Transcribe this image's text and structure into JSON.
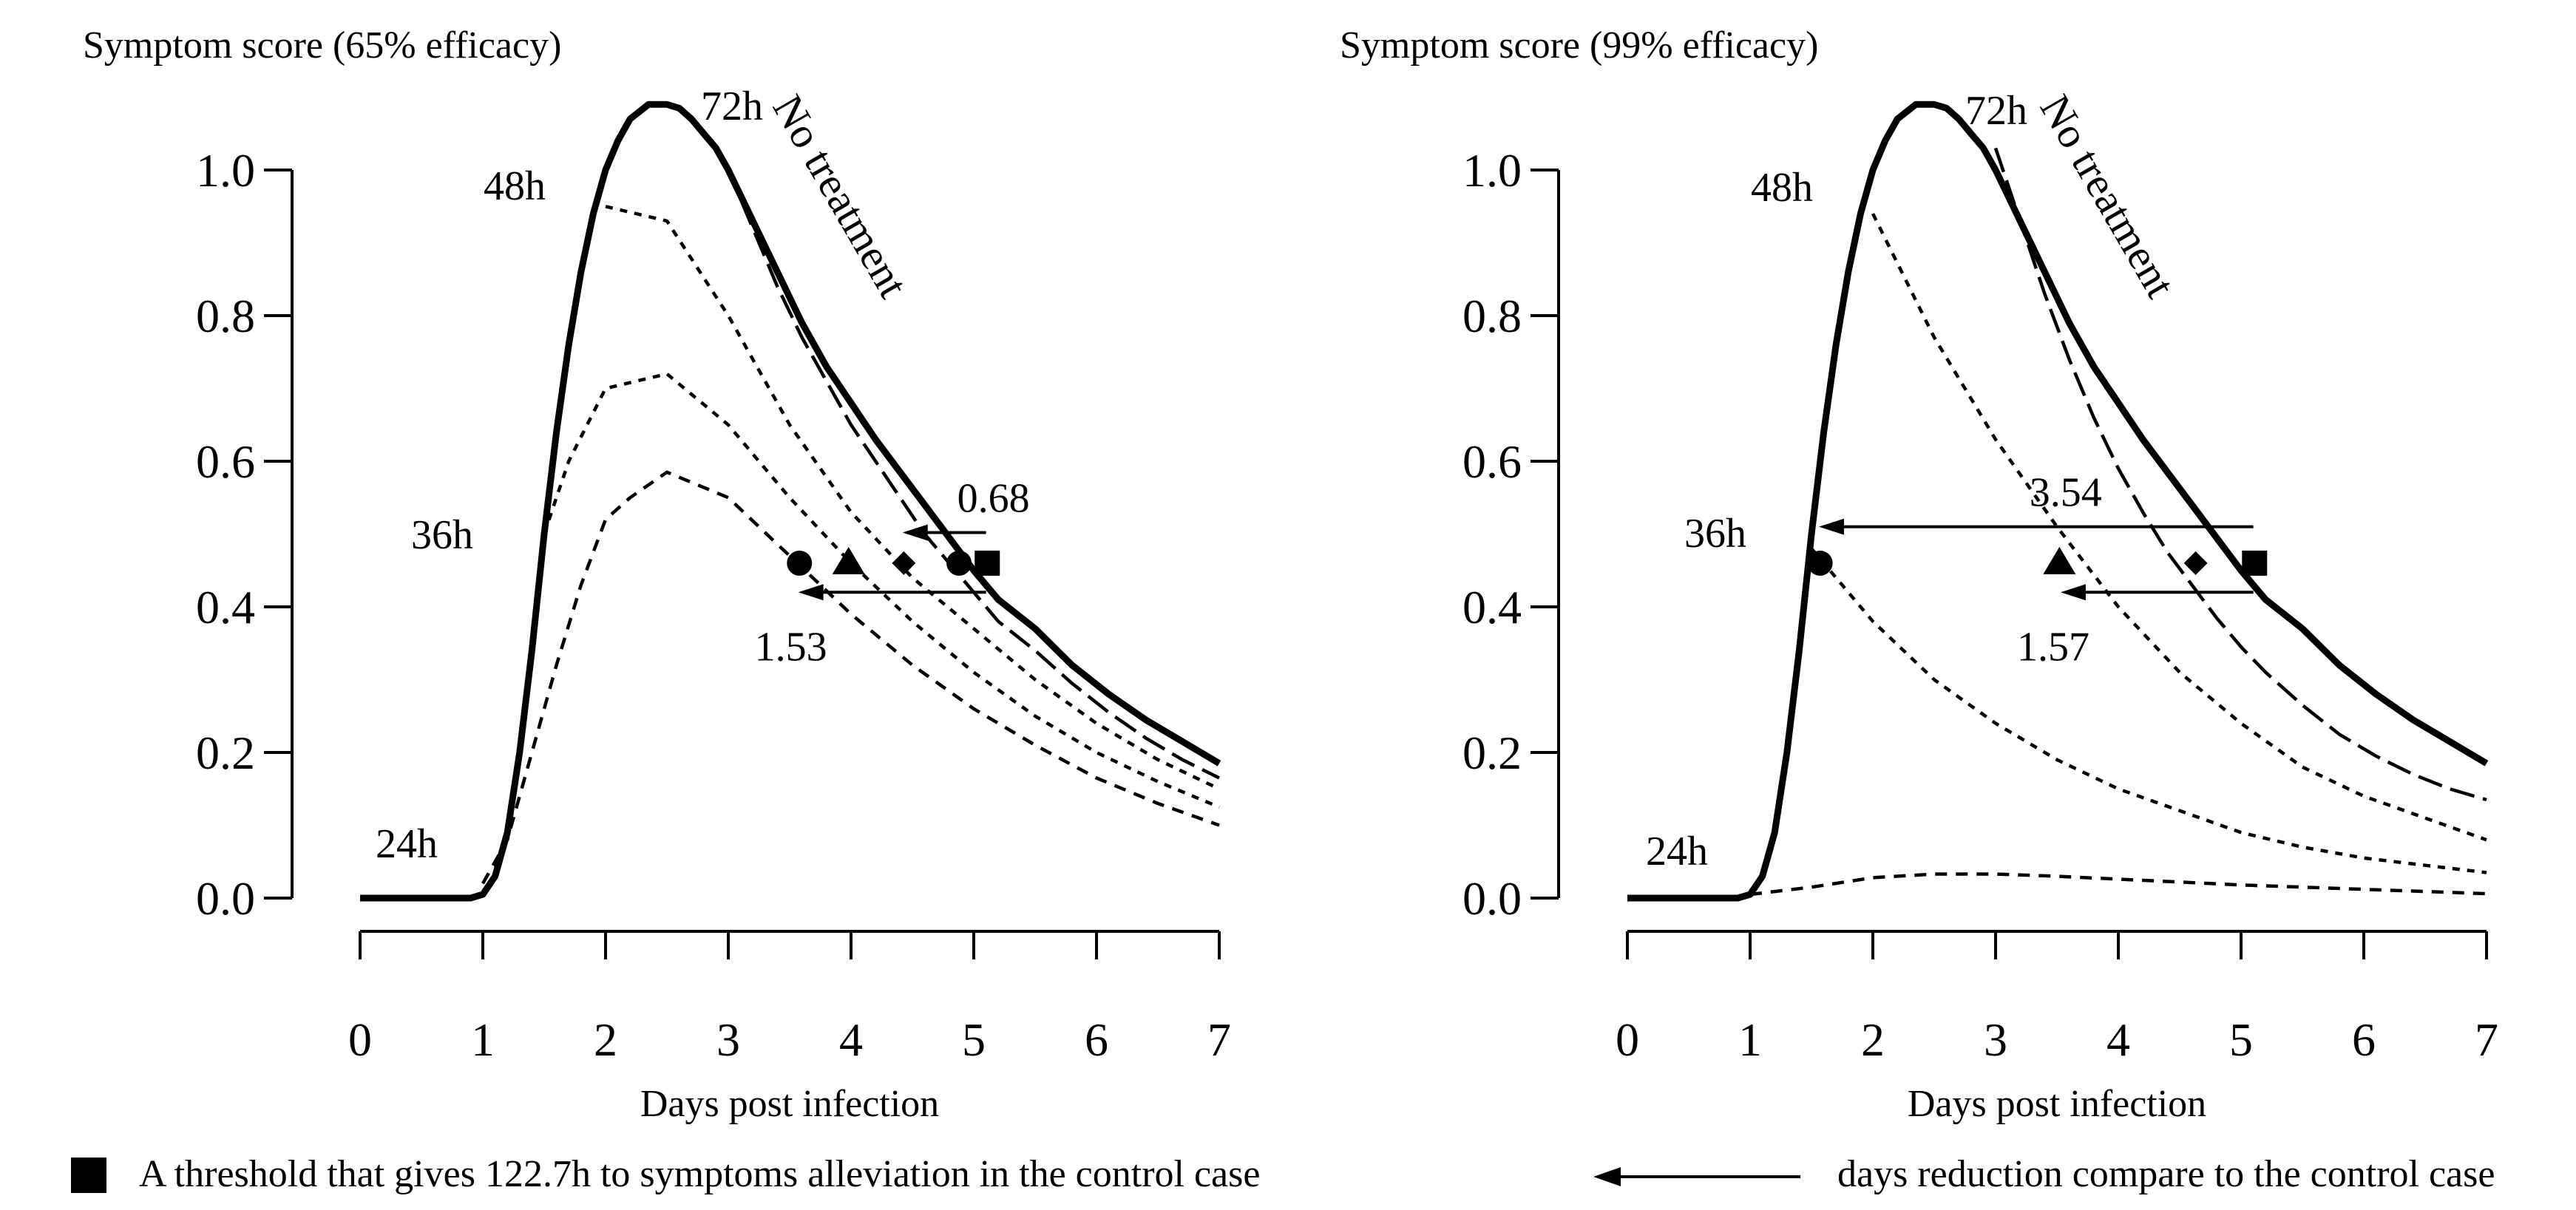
{
  "chart_data": [
    {
      "type": "line",
      "title": "Symptom score (65% efficacy)",
      "xlabel": "Days post infection",
      "ylabel": "",
      "xlim": [
        0,
        7
      ],
      "ylim": [
        0,
        1.0
      ],
      "xticks": [
        "0",
        "1",
        "2",
        "3",
        "4",
        "5",
        "6",
        "7"
      ],
      "yticks": [
        "0.0",
        "0.2",
        "0.4",
        "0.6",
        "0.8",
        "1.0"
      ],
      "curve_label": "No treatment",
      "start_labels": [
        "24h",
        "36h",
        "48h",
        "72h"
      ],
      "series": [
        {
          "name": "No treatment",
          "style": "solid",
          "x": [
            0,
            0.9,
            1.0,
            1.1,
            1.2,
            1.3,
            1.4,
            1.5,
            1.6,
            1.7,
            1.8,
            1.9,
            2.0,
            2.1,
            2.2,
            2.35,
            2.5,
            2.6,
            2.7,
            2.8,
            2.9,
            3.0,
            3.2,
            3.4,
            3.6,
            3.8,
            4.0,
            4.2,
            4.4,
            4.6,
            4.8,
            5.0,
            5.2,
            5.5,
            5.8,
            6.1,
            6.4,
            6.7,
            7.0
          ],
          "y": [
            0,
            0,
            0.005,
            0.03,
            0.09,
            0.2,
            0.34,
            0.5,
            0.64,
            0.76,
            0.86,
            0.94,
            1.0,
            1.04,
            1.07,
            1.09,
            1.09,
            1.085,
            1.07,
            1.05,
            1.03,
            1.0,
            0.93,
            0.86,
            0.79,
            0.73,
            0.68,
            0.63,
            0.585,
            0.54,
            0.495,
            0.45,
            0.41,
            0.37,
            0.32,
            0.28,
            0.245,
            0.215,
            0.185
          ]
        },
        {
          "name": "Treatment started at 72h",
          "style": "dashed",
          "x": [
            3.0,
            3.2,
            3.4,
            3.6,
            3.8,
            4.0,
            4.2,
            4.4,
            4.6,
            4.8,
            5.0,
            5.2,
            5.5,
            5.8,
            6.1,
            6.4,
            6.7,
            7.0
          ],
          "y": [
            1.0,
            0.92,
            0.84,
            0.77,
            0.71,
            0.65,
            0.6,
            0.55,
            0.5,
            0.46,
            0.42,
            0.38,
            0.34,
            0.295,
            0.255,
            0.22,
            0.19,
            0.165
          ]
        },
        {
          "name": "Treatment started at 48h",
          "style": "dotted",
          "x": [
            2.0,
            2.5,
            3.0,
            3.5,
            4.0,
            4.5,
            5.0,
            5.5,
            6.0,
            6.5,
            7.0
          ],
          "y": [
            0.95,
            0.93,
            0.8,
            0.65,
            0.53,
            0.44,
            0.37,
            0.3,
            0.24,
            0.19,
            0.15
          ]
        },
        {
          "name": "Treatment started at 36h",
          "style": "dotted",
          "x": [
            1.5,
            1.7,
            2.0,
            2.5,
            3.0,
            3.5,
            4.0,
            4.5,
            5.0,
            5.5,
            6.0,
            6.5,
            7.0
          ],
          "y": [
            0.5,
            0.6,
            0.7,
            0.72,
            0.65,
            0.55,
            0.46,
            0.38,
            0.31,
            0.25,
            0.2,
            0.16,
            0.125
          ]
        },
        {
          "name": "Treatment started at 24h",
          "style": "dashed-short",
          "x": [
            1.0,
            1.2,
            1.4,
            1.6,
            1.8,
            2.0,
            2.2,
            2.5,
            3.0,
            3.5,
            4.0,
            4.5,
            5.0,
            5.5,
            6.0,
            6.5,
            7.0
          ],
          "y": [
            0.02,
            0.08,
            0.2,
            0.32,
            0.43,
            0.52,
            0.55,
            0.585,
            0.55,
            0.47,
            0.39,
            0.32,
            0.26,
            0.21,
            0.165,
            0.13,
            0.1
          ]
        }
      ],
      "markers": [
        {
          "shape": "square",
          "x": 5.11,
          "y": 0.46
        },
        {
          "shape": "circle",
          "x": 4.88,
          "y": 0.46
        },
        {
          "shape": "diamond",
          "x": 4.43,
          "y": 0.46
        },
        {
          "shape": "triangle",
          "x": 3.98,
          "y": 0.46
        },
        {
          "shape": "circle",
          "x": 3.58,
          "y": 0.46
        }
      ],
      "arrows": [
        {
          "label": "0.68",
          "x_from": 5.1,
          "x_to": 4.42,
          "y": 0.502,
          "label_pos": "above"
        },
        {
          "label": "1.53",
          "x_from": 5.1,
          "x_to": 3.57,
          "y": 0.42,
          "label_pos": "below"
        }
      ]
    },
    {
      "type": "line",
      "title": "Symptom score (99% efficacy)",
      "xlabel": "Days post infection",
      "ylabel": "",
      "xlim": [
        0,
        7
      ],
      "ylim": [
        0,
        1.0
      ],
      "xticks": [
        "0",
        "1",
        "2",
        "3",
        "4",
        "5",
        "6",
        "7"
      ],
      "yticks": [
        "0.0",
        "0.2",
        "0.4",
        "0.6",
        "0.8",
        "1.0"
      ],
      "curve_label": "No treatment",
      "start_labels": [
        "24h",
        "36h",
        "48h",
        "72h"
      ],
      "series": [
        {
          "name": "No treatment",
          "style": "solid",
          "x": [
            0,
            0.9,
            1.0,
            1.1,
            1.2,
            1.3,
            1.4,
            1.5,
            1.6,
            1.7,
            1.8,
            1.9,
            2.0,
            2.1,
            2.2,
            2.35,
            2.5,
            2.6,
            2.7,
            2.8,
            2.9,
            3.0,
            3.2,
            3.4,
            3.6,
            3.8,
            4.0,
            4.2,
            4.4,
            4.6,
            4.8,
            5.0,
            5.2,
            5.5,
            5.8,
            6.1,
            6.4,
            6.7,
            7.0
          ],
          "y": [
            0,
            0,
            0.005,
            0.03,
            0.09,
            0.2,
            0.34,
            0.5,
            0.64,
            0.76,
            0.86,
            0.94,
            1.0,
            1.04,
            1.07,
            1.09,
            1.09,
            1.085,
            1.07,
            1.05,
            1.03,
            1.0,
            0.93,
            0.86,
            0.79,
            0.73,
            0.68,
            0.63,
            0.585,
            0.54,
            0.495,
            0.45,
            0.41,
            0.37,
            0.32,
            0.28,
            0.245,
            0.215,
            0.185
          ]
        },
        {
          "name": "Treatment started at 72h",
          "style": "dashed",
          "x": [
            3.0,
            3.2,
            3.4,
            3.6,
            3.8,
            4.0,
            4.2,
            4.4,
            4.6,
            4.8,
            5.0,
            5.2,
            5.5,
            5.8,
            6.1,
            6.4,
            6.7,
            7.0
          ],
          "y": [
            1.03,
            0.93,
            0.83,
            0.74,
            0.66,
            0.59,
            0.53,
            0.475,
            0.43,
            0.385,
            0.345,
            0.31,
            0.265,
            0.225,
            0.195,
            0.17,
            0.15,
            0.135
          ]
        },
        {
          "name": "Treatment started at 48h",
          "style": "dotted",
          "x": [
            2.0,
            2.5,
            3.0,
            3.5,
            4.0,
            4.5,
            5.0,
            5.5,
            6.0,
            6.5,
            7.0
          ],
          "y": [
            0.94,
            0.77,
            0.63,
            0.51,
            0.4,
            0.31,
            0.24,
            0.18,
            0.14,
            0.11,
            0.08
          ]
        },
        {
          "name": "Treatment started at 36h",
          "style": "dotted",
          "x": [
            1.5,
            2.0,
            2.5,
            3.0,
            3.5,
            4.0,
            4.5,
            5.0,
            5.5,
            6.0,
            6.5,
            7.0
          ],
          "y": [
            0.48,
            0.38,
            0.3,
            0.24,
            0.19,
            0.15,
            0.12,
            0.09,
            0.07,
            0.055,
            0.045,
            0.035
          ]
        },
        {
          "name": "Treatment started at 24h",
          "style": "dashed-short",
          "x": [
            1.0,
            1.5,
            2.0,
            2.5,
            3.0,
            3.5,
            4.0,
            4.5,
            5.0,
            5.5,
            6.0,
            6.5,
            7.0
          ],
          "y": [
            0.005,
            0.015,
            0.028,
            0.033,
            0.033,
            0.03,
            0.026,
            0.022,
            0.018,
            0.015,
            0.012,
            0.009,
            0.006
          ]
        }
      ],
      "markers": [
        {
          "shape": "square",
          "x": 5.11,
          "y": 0.46
        },
        {
          "shape": "diamond",
          "x": 4.63,
          "y": 0.46
        },
        {
          "shape": "triangle",
          "x": 3.52,
          "y": 0.46
        },
        {
          "shape": "circle",
          "x": 1.57,
          "y": 0.46
        }
      ],
      "arrows": [
        {
          "label": "3.54",
          "x_from": 5.1,
          "x_to": 1.56,
          "y": 0.51,
          "label_pos": "above"
        },
        {
          "label": "1.57",
          "x_from": 5.1,
          "x_to": 3.53,
          "y": 0.42,
          "label_pos": "below"
        }
      ]
    }
  ],
  "legend": {
    "square_text": "A threshold that gives 122.7h to symptoms alleviation in the control case",
    "arrow_text": "days reduction compare to the control case"
  }
}
